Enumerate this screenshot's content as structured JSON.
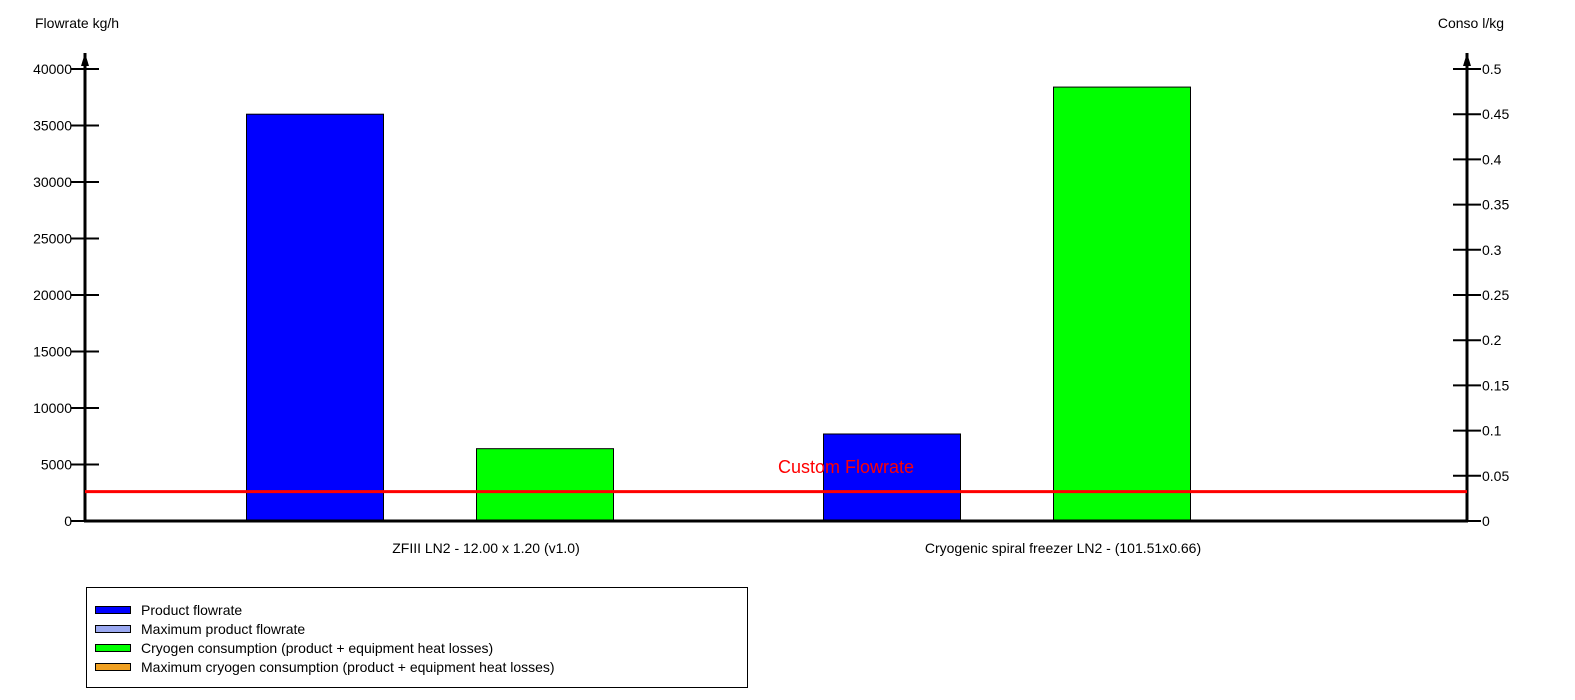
{
  "chart_data": {
    "type": "bar",
    "left_axis": {
      "label": "Flowrate kg/h",
      "min": 0,
      "max": 40000,
      "step": 5000,
      "ticks": [
        "0",
        "5000",
        "10000",
        "15000",
        "20000",
        "25000",
        "30000",
        "35000",
        "40000"
      ]
    },
    "right_axis": {
      "label": "Conso l/kg",
      "min": 0,
      "max": 0.5,
      "step": 0.05,
      "ticks": [
        "0",
        "0.05",
        "0.1",
        "0.15",
        "0.2",
        "0.25",
        "0.3",
        "0.35",
        "0.4",
        "0.45",
        "0.5"
      ]
    },
    "categories": [
      "ZFIII LN2 - 12.00 x 1.20 (v1.0)",
      "Cryogenic spiral freezer LN2 - (101.51x0.66)"
    ],
    "series": [
      {
        "name": "Product flowrate",
        "axis": "left",
        "color": "#0000ff",
        "values": [
          36000,
          7700
        ]
      },
      {
        "name": "Cryogen consumption (product + equipment heat losses)",
        "axis": "right",
        "color": "#00ff00",
        "values": [
          0.08,
          0.48
        ]
      }
    ],
    "reference_line": {
      "label": "Custom Flowrate",
      "value": 2600,
      "axis": "left",
      "color": "#ff0000"
    },
    "legend": [
      {
        "label": "Product flowrate",
        "color": "#0000ff"
      },
      {
        "label": "Maximum product flowrate",
        "color": "#9aa8f0"
      },
      {
        "label": "Cryogen consumption (product + equipment heat losses)",
        "color": "#00ff00"
      },
      {
        "label": "Maximum cryogen consumption (product + equipment heat losses)",
        "color": "#f0a020"
      }
    ],
    "legend_position": "bottom-left",
    "grid": false
  }
}
